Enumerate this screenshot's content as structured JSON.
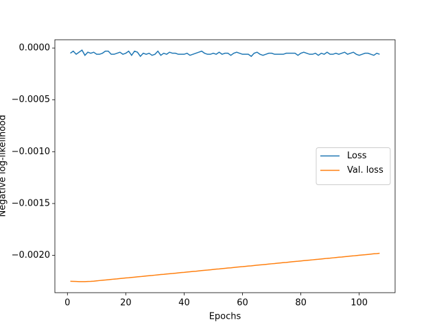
{
  "chart_data": {
    "type": "line",
    "xlabel": "Epochs",
    "ylabel": "Negative log-likelihood",
    "x": [
      1,
      2,
      3,
      4,
      5,
      6,
      7,
      8,
      9,
      10,
      11,
      12,
      13,
      14,
      15,
      16,
      17,
      18,
      19,
      20,
      21,
      22,
      23,
      24,
      25,
      26,
      27,
      28,
      29,
      30,
      31,
      32,
      33,
      34,
      35,
      36,
      37,
      38,
      39,
      40,
      41,
      42,
      43,
      44,
      45,
      46,
      47,
      48,
      49,
      50,
      51,
      52,
      53,
      54,
      55,
      56,
      57,
      58,
      59,
      60,
      61,
      62,
      63,
      64,
      65,
      66,
      67,
      68,
      69,
      70,
      71,
      72,
      73,
      74,
      75,
      76,
      77,
      78,
      79,
      80,
      81,
      82,
      83,
      84,
      85,
      86,
      87,
      88,
      89,
      90,
      91,
      92,
      93,
      94,
      95,
      96,
      97,
      98,
      99,
      100,
      101,
      102,
      103,
      104,
      105,
      106,
      107
    ],
    "series": [
      {
        "name": "Loss",
        "color": "#1f77b4",
        "values": [
          -5e-05,
          -3e-05,
          -6e-05,
          -4e-05,
          -2e-05,
          -7e-05,
          -4e-05,
          -5e-05,
          -4e-05,
          -6e-05,
          -6e-05,
          -5e-05,
          -3e-05,
          -3e-05,
          -6e-05,
          -6e-05,
          -5e-05,
          -4e-05,
          -6e-05,
          -5e-05,
          -3e-05,
          -7e-05,
          -3e-05,
          -4e-05,
          -8e-05,
          -5e-05,
          -6e-05,
          -5e-05,
          -7e-05,
          -6e-05,
          -3e-05,
          -7e-05,
          -5e-05,
          -6e-05,
          -4e-05,
          -5e-05,
          -5e-05,
          -6e-05,
          -6e-05,
          -6e-05,
          -5e-05,
          -7e-05,
          -6e-05,
          -5e-05,
          -4e-05,
          -3e-05,
          -5e-05,
          -6e-05,
          -6e-05,
          -5e-05,
          -6e-05,
          -4e-05,
          -6e-05,
          -5e-05,
          -5e-05,
          -7e-05,
          -5e-05,
          -4e-05,
          -5e-05,
          -6e-05,
          -6e-05,
          -6e-05,
          -8e-05,
          -5e-05,
          -4e-05,
          -6e-05,
          -7e-05,
          -6e-05,
          -5e-05,
          -5e-05,
          -6e-05,
          -6e-05,
          -6e-05,
          -6e-05,
          -5e-05,
          -5e-05,
          -5e-05,
          -5e-05,
          -7e-05,
          -5e-05,
          -4e-05,
          -5e-05,
          -6e-05,
          -6e-05,
          -5e-05,
          -7e-05,
          -5e-05,
          -6e-05,
          -4e-05,
          -6e-05,
          -6e-05,
          -5e-05,
          -6e-05,
          -5e-05,
          -4e-05,
          -6e-05,
          -5e-05,
          -4e-05,
          -6e-05,
          -7e-05,
          -6e-05,
          -5e-05,
          -5e-05,
          -6e-05,
          -7e-05,
          -5e-05,
          -6e-05
        ]
      },
      {
        "name": "Val. loss",
        "color": "#ff7f0e",
        "values": [
          -0.00225,
          -0.002251,
          -0.002252,
          -0.002253,
          -0.002253,
          -0.002253,
          -0.002252,
          -0.002251,
          -0.002249,
          -0.002246,
          -0.002243,
          -0.00224,
          -0.002238,
          -0.002235,
          -0.002232,
          -0.002229,
          -0.002227,
          -0.002224,
          -0.002221,
          -0.002218,
          -0.002216,
          -0.002213,
          -0.00221,
          -0.002207,
          -0.002205,
          -0.002202,
          -0.002199,
          -0.002196,
          -0.002194,
          -0.002191,
          -0.002188,
          -0.002185,
          -0.002183,
          -0.00218,
          -0.002177,
          -0.002175,
          -0.002172,
          -0.002169,
          -0.002166,
          -0.002164,
          -0.002161,
          -0.002158,
          -0.002155,
          -0.002153,
          -0.00215,
          -0.002147,
          -0.002144,
          -0.002142,
          -0.002139,
          -0.002136,
          -0.002133,
          -0.002131,
          -0.002128,
          -0.002125,
          -0.002122,
          -0.00212,
          -0.002117,
          -0.002114,
          -0.002111,
          -0.002109,
          -0.002106,
          -0.002103,
          -0.002101,
          -0.002098,
          -0.002095,
          -0.002092,
          -0.00209,
          -0.002087,
          -0.002084,
          -0.002081,
          -0.002079,
          -0.002076,
          -0.002073,
          -0.00207,
          -0.002068,
          -0.002065,
          -0.002062,
          -0.002059,
          -0.002057,
          -0.002054,
          -0.002051,
          -0.002048,
          -0.002046,
          -0.002043,
          -0.00204,
          -0.002038,
          -0.002035,
          -0.002032,
          -0.002029,
          -0.002027,
          -0.002024,
          -0.002021,
          -0.002018,
          -0.002016,
          -0.002013,
          -0.00201,
          -0.002007,
          -0.002005,
          -0.002002,
          -0.001999,
          -0.001996,
          -0.001994,
          -0.001991,
          -0.001988,
          -0.001985,
          -0.001983,
          -0.00198
        ]
      }
    ],
    "xlim": [
      -4.3,
      112.3
    ],
    "xticks": [
      0,
      20,
      40,
      60,
      80,
      100
    ],
    "ylim": [
      -0.00236,
      8e-05
    ],
    "yticks": [
      {
        "value": 0,
        "label": "0.0000"
      },
      {
        "value": -0.0005,
        "label": "−0.0005"
      },
      {
        "value": -0.001,
        "label": "−0.0010"
      },
      {
        "value": -0.0015,
        "label": "−0.0015"
      },
      {
        "value": -0.002,
        "label": "−0.0020"
      }
    ],
    "grid": false,
    "legend": "center right"
  }
}
